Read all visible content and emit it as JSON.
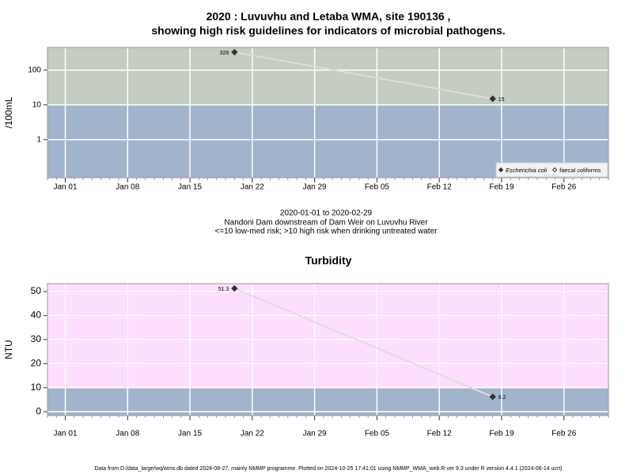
{
  "chart_data": [
    {
      "type": "line",
      "title": [
        "2020 : Luvuvhu and Letaba WMA, site 190136 ,",
        "showing high risk guidelines for indicators of microbial pathogens."
      ],
      "subtitle": [
        "2020-01-01 to 2020-02-29",
        "Nandoni Dam downstream of Dam Weir on Luvuvhu River",
        "<=10 low-med risk; >10 high risk when drinking untreated water"
      ],
      "ylabel": "/100mL",
      "log_y": true,
      "x": [
        "2020-01-20",
        "2020-02-18"
      ],
      "series": [
        {
          "name": "Escherichia coli",
          "color": "#333333",
          "marker": "filled-diamond",
          "values": [
            328,
            15
          ]
        },
        {
          "name": "faecal coliforms",
          "color": "#333333",
          "marker": "open-diamond",
          "values": [
            null,
            null
          ]
        }
      ],
      "line_color": "#dddddd",
      "xlim": [
        "2019-12-30",
        "2020-03-02"
      ],
      "xticks": [
        {
          "value": "2020-01-01",
          "label": "Jan 01"
        },
        {
          "value": "2020-01-08",
          "label": "Jan 08"
        },
        {
          "value": "2020-01-15",
          "label": "Jan 15"
        },
        {
          "value": "2020-01-22",
          "label": "Jan 22"
        },
        {
          "value": "2020-01-29",
          "label": "Jan 29"
        },
        {
          "value": "2020-02-05",
          "label": "Feb 05"
        },
        {
          "value": "2020-02-12",
          "label": "Feb 12"
        },
        {
          "value": "2020-02-19",
          "label": "Feb 19"
        },
        {
          "value": "2020-02-26",
          "label": "Feb 26"
        }
      ],
      "ylim": [
        0.08,
        450
      ],
      "yticks": [
        1,
        10,
        100
      ],
      "threshold": 10,
      "above_color": "#c4cdc0",
      "below_color": "#a2b3cc",
      "grid": true,
      "legend": "bottom-right"
    },
    {
      "type": "line",
      "title": [
        "Turbidity"
      ],
      "ylabel": "NTU",
      "log_y": false,
      "x": [
        "2020-01-20",
        "2020-02-18"
      ],
      "series": [
        {
          "color": "#333333",
          "marker": "filled-diamond",
          "values": [
            51.3,
            6.2
          ]
        }
      ],
      "line_color": "#dddddd",
      "xlim": [
        "2019-12-30",
        "2020-03-02"
      ],
      "xticks": [
        {
          "value": "2020-01-01",
          "label": "Jan 01"
        },
        {
          "value": "2020-01-08",
          "label": "Jan 08"
        },
        {
          "value": "2020-01-15",
          "label": "Jan 15"
        },
        {
          "value": "2020-01-22",
          "label": "Jan 22"
        },
        {
          "value": "2020-01-29",
          "label": "Jan 29"
        },
        {
          "value": "2020-02-05",
          "label": "Feb 05"
        },
        {
          "value": "2020-02-12",
          "label": "Feb 12"
        },
        {
          "value": "2020-02-19",
          "label": "Feb 19"
        },
        {
          "value": "2020-02-26",
          "label": "Feb 26"
        }
      ],
      "ylim": [
        -1.6,
        53.3
      ],
      "yticks": [
        0,
        10,
        20,
        30,
        40,
        50
      ],
      "threshold": 10,
      "above_color": "#fddefe",
      "below_color": "#a2b3cc",
      "grid": true
    }
  ],
  "footer": "Data from D:/data_large/wq/wms.db dated 2024-08-27, mainly NMMP programme. Plotted on 2024-10-25 17:41:01 using NMMP_WMA_web.R ver 9.3 under R version 4.4.1 (2024-06-14 ucrt)"
}
